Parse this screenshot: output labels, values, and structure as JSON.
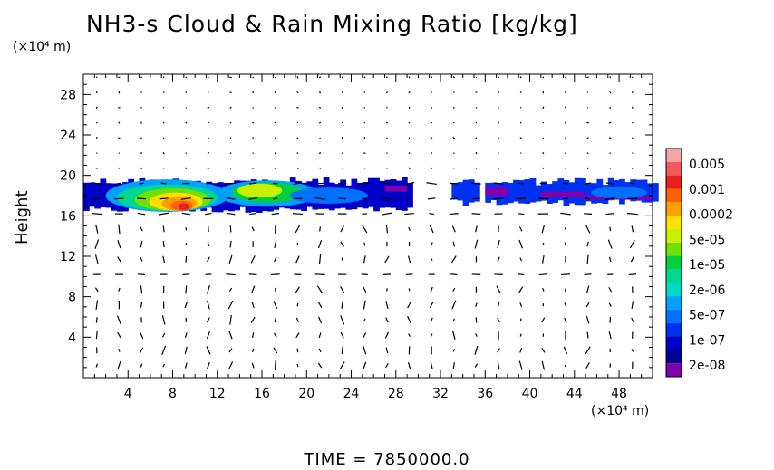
{
  "chart_data": {
    "type": "heatmap",
    "title": "NH3-s Cloud & Rain Mixing Ratio [kg/kg]",
    "ylabel": "Height",
    "x_unit": "(×10⁴ m)",
    "y_unit": "(×10⁴ m)",
    "xlim": [
      0,
      51
    ],
    "ylim": [
      0,
      30
    ],
    "x_ticks": [
      4,
      8,
      12,
      16,
      20,
      24,
      28,
      32,
      36,
      40,
      44,
      48
    ],
    "y_ticks": [
      4,
      8,
      12,
      16,
      20,
      24,
      28
    ],
    "colorbar": {
      "labels": [
        "0.005",
        "0.001",
        "0.0002",
        "5e-05",
        "1e-05",
        "2e-06",
        "5e-07",
        "1e-07",
        "2e-08"
      ],
      "colors": [
        "#f4a6a6",
        "#f05a5a",
        "#e82020",
        "#ff6000",
        "#ffa000",
        "#ffe000",
        "#c8f000",
        "#70e000",
        "#00d040",
        "#00d890",
        "#00d8c8",
        "#00a0ff",
        "#0070ff",
        "#0030f0",
        "#0000c8",
        "#000090",
        "#8000b0"
      ]
    },
    "cloud_layer": {
      "height_range": [
        16,
        20
      ],
      "x_extent_segments": [
        [
          0,
          29
        ],
        [
          33,
          35
        ],
        [
          36,
          51
        ]
      ]
    },
    "time_label": "TIME  =  7850000.0"
  }
}
